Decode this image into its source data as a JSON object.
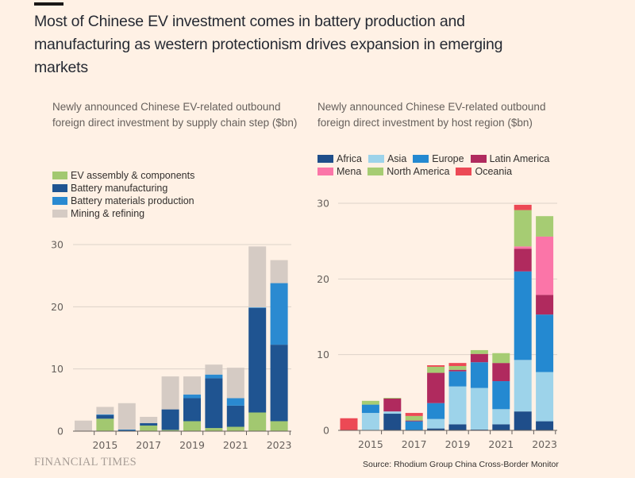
{
  "headline": "Most of Chinese EV investment comes in battery production and manufacturing as western protectionism drives expansion in emerging markets",
  "footer": {
    "brand": "FINANCIAL TIMES",
    "source": "Source: Rhodium Group China Cross-Border Monitor"
  },
  "chart_data": [
    {
      "type": "bar",
      "stacked": true,
      "title": "Newly announced Chinese EV-related outbound foreign direct investment by supply chain step ($bn)",
      "xlabel": "",
      "ylabel": "$bn",
      "ylim": [
        0,
        30
      ],
      "yticks": [
        0,
        10,
        20,
        30
      ],
      "grid": true,
      "legend_position": "top-left",
      "categories": [
        "2014",
        "2015",
        "2016",
        "2017",
        "2018",
        "2019",
        "2020",
        "2021",
        "2022",
        "2023"
      ],
      "xtick_labels": [
        "",
        "2015",
        "",
        "2017",
        "",
        "2019",
        "",
        "2021",
        "",
        "2023"
      ],
      "series": [
        {
          "name": "EV assembly & components",
          "color": "#a2c870",
          "values": [
            0,
            2.0,
            0,
            0.9,
            0.2,
            1.6,
            0.5,
            0.7,
            3.0,
            1.6
          ]
        },
        {
          "name": "Battery manufacturing",
          "color": "#1f5491",
          "values": [
            0,
            0.6,
            0.2,
            0.4,
            3.3,
            3.7,
            8.0,
            3.4,
            16.8,
            12.3
          ]
        },
        {
          "name": "Battery materials production",
          "color": "#2a8ad1",
          "values": [
            0,
            0.1,
            0.05,
            0,
            0,
            0.6,
            0.6,
            1.2,
            0.1,
            9.9
          ]
        },
        {
          "name": "Mining & refining",
          "color": "#d5cbc4",
          "values": [
            1.7,
            1.2,
            4.25,
            1.0,
            5.3,
            2.9,
            1.6,
            4.9,
            9.8,
            3.7
          ]
        }
      ]
    },
    {
      "type": "bar",
      "stacked": true,
      "title": "Newly announced Chinese EV-related outbound foreign direct investment by host region ($bn)",
      "xlabel": "",
      "ylabel": "$bn",
      "ylim": [
        0,
        30
      ],
      "yticks": [
        0,
        10,
        20,
        30
      ],
      "grid": true,
      "legend_position": "top-left",
      "categories": [
        "2014",
        "2015",
        "2016",
        "2017",
        "2018",
        "2019",
        "2020",
        "2021",
        "2022",
        "2023"
      ],
      "xtick_labels": [
        "",
        "2015",
        "",
        "2017",
        "",
        "2019",
        "",
        "2021",
        "",
        "2023"
      ],
      "series": [
        {
          "name": "Africa",
          "color": "#1f4e8a",
          "values": [
            0,
            0,
            2.2,
            0,
            0.25,
            0.8,
            0.1,
            0.8,
            2.5,
            1.2
          ]
        },
        {
          "name": "Asia",
          "color": "#9dd3ea",
          "values": [
            0,
            2.3,
            0.3,
            0,
            1.25,
            5.0,
            5.5,
            2.0,
            6.8,
            6.5
          ]
        },
        {
          "name": "Europe",
          "color": "#2489d1",
          "values": [
            0,
            1.1,
            0,
            1.2,
            2.1,
            2.0,
            3.4,
            3.7,
            11.7,
            7.6
          ]
        },
        {
          "name": "Latin America",
          "color": "#b02a5e",
          "values": [
            0,
            0,
            1.7,
            0.1,
            4.0,
            0.2,
            1.1,
            2.4,
            3.0,
            2.6
          ]
        },
        {
          "name": "Mena",
          "color": "#fb75a8",
          "values": [
            0,
            0,
            0,
            0,
            0,
            0,
            0,
            0,
            0.3,
            7.7
          ]
        },
        {
          "name": "North America",
          "color": "#a6cc73",
          "values": [
            0,
            0.5,
            0.1,
            0.6,
            0.8,
            0.5,
            0.5,
            1.3,
            4.8,
            2.7
          ]
        },
        {
          "name": "Oceania",
          "color": "#ec4955",
          "values": [
            1.6,
            0,
            0,
            0.4,
            0.2,
            0.4,
            0,
            0,
            0.7,
            0
          ]
        }
      ]
    }
  ]
}
